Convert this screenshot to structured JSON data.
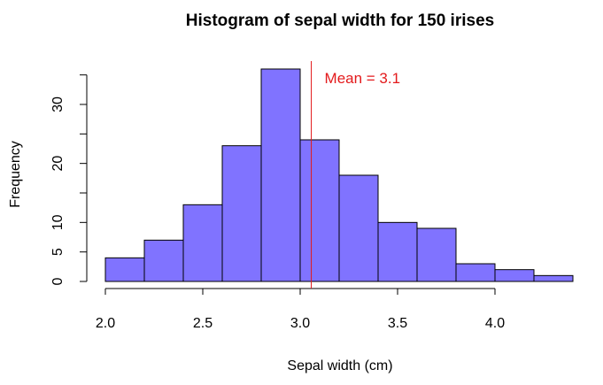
{
  "chart_data": {
    "type": "bar",
    "title": "Histogram of sepal width for 150 irises",
    "xlabel": "Sepal width (cm)",
    "ylabel": "Frequency",
    "bins": [
      {
        "start": 2.0,
        "end": 2.2,
        "count": 4
      },
      {
        "start": 2.2,
        "end": 2.4,
        "count": 7
      },
      {
        "start": 2.4,
        "end": 2.6,
        "count": 13
      },
      {
        "start": 2.6,
        "end": 2.8,
        "count": 23
      },
      {
        "start": 2.8,
        "end": 3.0,
        "count": 36
      },
      {
        "start": 3.0,
        "end": 3.2,
        "count": 24
      },
      {
        "start": 3.2,
        "end": 3.4,
        "count": 18
      },
      {
        "start": 3.4,
        "end": 3.6,
        "count": 10
      },
      {
        "start": 3.6,
        "end": 3.8,
        "count": 9
      },
      {
        "start": 3.8,
        "end": 4.0,
        "count": 3
      },
      {
        "start": 4.0,
        "end": 4.2,
        "count": 2
      },
      {
        "start": 4.2,
        "end": 4.4,
        "count": 1
      }
    ],
    "x_ticks": [
      {
        "value": 2.0,
        "label": "2.0"
      },
      {
        "value": 2.5,
        "label": "2.5"
      },
      {
        "value": 3.0,
        "label": "3.0"
      },
      {
        "value": 3.5,
        "label": "3.5"
      },
      {
        "value": 4.0,
        "label": "4.0"
      }
    ],
    "y_ticks": [
      {
        "value": 0,
        "label": "0"
      },
      {
        "value": 5,
        "label": "5"
      },
      {
        "value": 10,
        "label": "10"
      },
      {
        "value": 15,
        "label": ""
      },
      {
        "value": 20,
        "label": "20"
      },
      {
        "value": 25,
        "label": ""
      },
      {
        "value": 30,
        "label": "30"
      },
      {
        "value": 35,
        "label": ""
      }
    ],
    "xlim": [
      2.0,
      4.4
    ],
    "ylim": [
      0,
      36
    ],
    "mean_line": {
      "value": 3.057,
      "label": "Mean = 3.1",
      "color": "#e31a1c"
    },
    "bar_color": "#8073ff",
    "bar_edge_color": "#000000",
    "grid": false
  }
}
